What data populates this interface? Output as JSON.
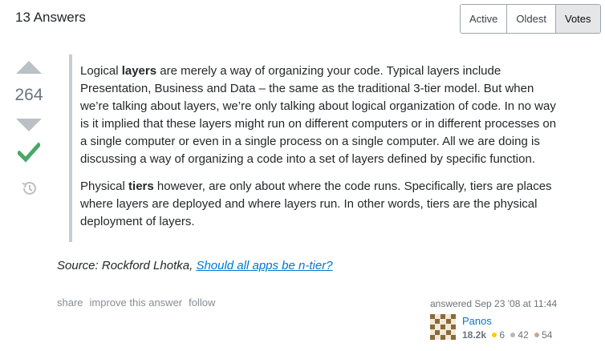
{
  "header": {
    "answers_count": "13 Answers"
  },
  "sort": {
    "tabs": [
      {
        "label": "Active"
      },
      {
        "label": "Oldest"
      },
      {
        "label": "Votes"
      }
    ],
    "selected": "Votes"
  },
  "votes": {
    "count": "264",
    "accepted": true
  },
  "answer": {
    "p1_a": "Logical ",
    "p1_bold": "layers",
    "p1_b": " are merely a way of organizing your code. Typical layers include Presentation, Business and Data – the same as the traditional 3-tier model. But when we’re talking about layers, we’re only talking about logical organization of code. In no way is it implied that these layers might run on different computers or in different processes on a single computer or even in a single process on a single computer. All we are doing is discussing a way of organizing a code into a set of layers defined by specific function.",
    "p2_a": "Physical ",
    "p2_bold": "tiers",
    "p2_b": " however, are only about where the code runs. Specifically, tiers are places where layers are deployed and where layers run. In other words, tiers are the physical deployment of layers.",
    "source_prefix": "Source: Rockford Lhotka, ",
    "source_link": "Should all apps be n-tier?"
  },
  "post_menu": {
    "share": "share",
    "improve": "improve this answer",
    "follow": "follow"
  },
  "user": {
    "answered": "answered Sep 23 '08 at 11:44",
    "name": "Panos",
    "reputation": "18.2k",
    "gold": "6",
    "silver": "42",
    "bronze": "54"
  },
  "colors": {
    "gold": "#ffcc01",
    "silver": "#b4b8bc",
    "bronze": "#d1a684",
    "accepted": "#48a868",
    "link": "#0077cc"
  }
}
